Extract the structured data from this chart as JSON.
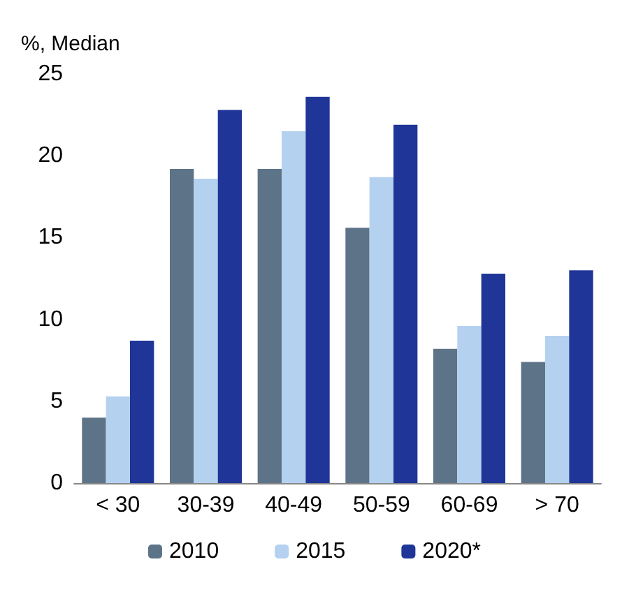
{
  "chart_data": {
    "type": "bar",
    "ylabel": "%, Median",
    "categories": [
      "< 30",
      "30-39",
      "40-49",
      "50-59",
      "60-69",
      "> 70"
    ],
    "series": [
      {
        "name": "2010",
        "color": "#5d7387",
        "values": [
          4.0,
          19.2,
          19.2,
          15.6,
          8.2,
          7.4
        ]
      },
      {
        "name": "2015",
        "color": "#b5d1f0",
        "values": [
          5.3,
          18.6,
          21.5,
          18.7,
          9.6,
          9.0
        ]
      },
      {
        "name": "2020*",
        "color": "#1f3597",
        "values": [
          8.7,
          22.8,
          23.6,
          21.9,
          12.8,
          13.0
        ]
      }
    ],
    "ylim": [
      0,
      25
    ],
    "yticks": [
      0,
      5,
      10,
      15,
      20,
      25
    ],
    "grid": false,
    "legend": "bottom"
  }
}
